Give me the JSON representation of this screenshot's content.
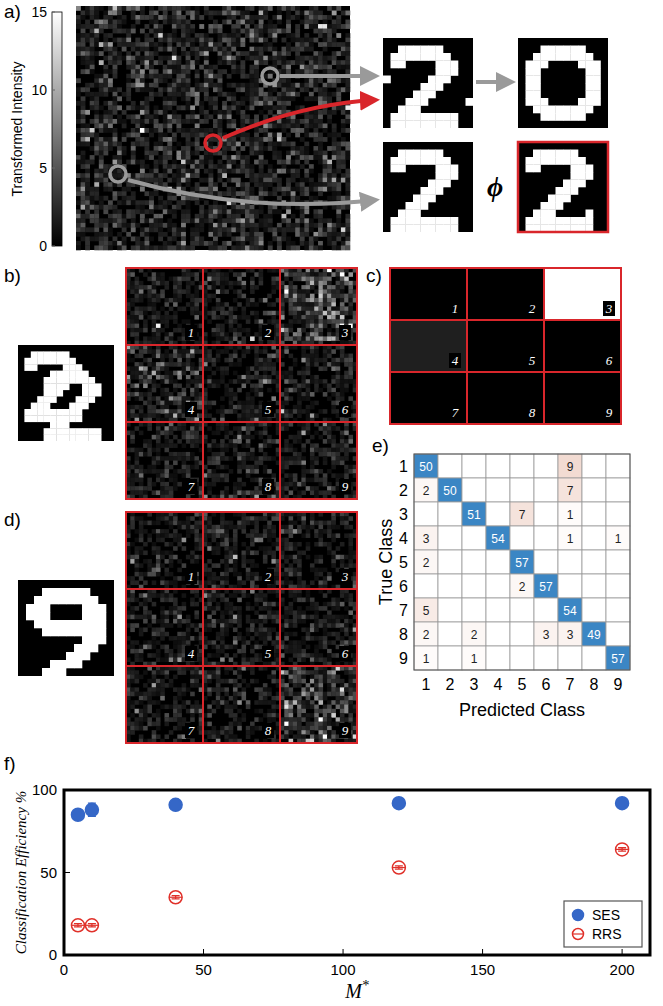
{
  "chart_data": [
    {
      "type": "image",
      "panel": "a)",
      "colorbar_label": "Transformed Intensity",
      "colorbar_lim": [
        0,
        15
      ],
      "colorbar_ticks": [
        0,
        5,
        10,
        15
      ],
      "operator": "ϕ"
    },
    {
      "type": "image_grid",
      "panel": "b)",
      "labels": [
        "1",
        "2",
        "3",
        "4",
        "5",
        "6",
        "7",
        "8",
        "9"
      ],
      "brightness": [
        1,
        1,
        2.4,
        1.6,
        1,
        1,
        1,
        1,
        1
      ]
    },
    {
      "type": "heatmap",
      "panel": "c)",
      "labels": [
        "1",
        "2",
        "3",
        "4",
        "5",
        "6",
        "7",
        "8",
        "9"
      ],
      "cells": [
        0,
        0,
        1,
        0.12,
        0,
        0,
        0,
        0,
        0
      ]
    },
    {
      "type": "image_grid",
      "panel": "d)",
      "labels": [
        "1",
        "2",
        "3",
        "4",
        "5",
        "6",
        "7",
        "8",
        "9"
      ],
      "brightness": [
        1,
        1,
        1,
        1,
        1,
        1,
        1,
        1,
        2.4
      ]
    },
    {
      "type": "heatmap",
      "panel": "e)",
      "x_label": "Predicted Class",
      "y_label": "True Class",
      "categories": [
        "1",
        "2",
        "3",
        "4",
        "5",
        "6",
        "7",
        "8",
        "9"
      ],
      "data_labels": true,
      "cells": [
        [
          50,
          null,
          null,
          null,
          null,
          null,
          9,
          null,
          null
        ],
        [
          2,
          50,
          null,
          null,
          null,
          null,
          7,
          null,
          null
        ],
        [
          null,
          null,
          51,
          null,
          7,
          null,
          1,
          null,
          null
        ],
        [
          3,
          null,
          null,
          54,
          null,
          null,
          1,
          null,
          1
        ],
        [
          2,
          null,
          null,
          null,
          57,
          null,
          null,
          null,
          null
        ],
        [
          null,
          null,
          null,
          null,
          2,
          57,
          null,
          null,
          null
        ],
        [
          5,
          null,
          null,
          null,
          null,
          null,
          54,
          null,
          null
        ],
        [
          2,
          null,
          2,
          null,
          null,
          3,
          3,
          49,
          null
        ],
        [
          1,
          null,
          1,
          null,
          null,
          null,
          null,
          null,
          57
        ]
      ]
    },
    {
      "type": "scatter",
      "panel": "f)",
      "x_label": "M*",
      "y_label": "Classification Efficiency %",
      "x": [
        5,
        10,
        40,
        120,
        200
      ],
      "xlim": [
        0,
        210
      ],
      "xticks": [
        0,
        50,
        100,
        150,
        200
      ],
      "ylim": [
        0,
        100
      ],
      "yticks": [
        0,
        50,
        100
      ],
      "legend": "lower right",
      "series": [
        {
          "name": "SES",
          "color": "#3567c7",
          "marker": "filled-circle",
          "values": [
            85,
            88,
            91,
            92,
            92
          ],
          "errors": [
            2,
            4,
            1.5,
            1,
            1
          ]
        },
        {
          "name": "RRS",
          "color": "#e0312a",
          "marker": "open-circle",
          "values": [
            18,
            18,
            35,
            53,
            64
          ],
          "errors": [
            1,
            1,
            1,
            1,
            1
          ]
        }
      ]
    }
  ]
}
